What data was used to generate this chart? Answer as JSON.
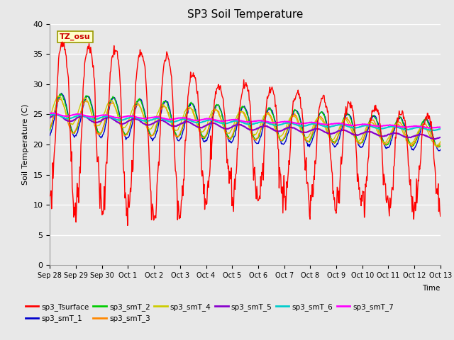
{
  "title": "SP3 Soil Temperature",
  "ylabel": "Soil Temperature (C)",
  "xlabel": "Time",
  "ylim": [
    0,
    40
  ],
  "xlim": [
    0,
    15
  ],
  "figsize": [
    6.4,
    4.8
  ],
  "dpi": 100,
  "background_color": "#e8e8e8",
  "plot_bg_color": "#e8e8e8",
  "grid_color": "#ffffff",
  "tz_label": "TZ_osu",
  "series_colors": {
    "sp3_Tsurface": "#ff0000",
    "sp3_smT_1": "#0000cc",
    "sp3_smT_2": "#00cc00",
    "sp3_smT_3": "#ff8800",
    "sp3_smT_4": "#cccc00",
    "sp3_smT_5": "#8800cc",
    "sp3_smT_6": "#00cccc",
    "sp3_smT_7": "#ff00ff"
  },
  "x_tick_labels": [
    "Sep 28",
    "Sep 29",
    "Sep 30",
    "Oct 1",
    "Oct 2",
    "Oct 3",
    "Oct 4",
    "Oct 5",
    "Oct 6",
    "Oct 7",
    "Oct 8",
    "Oct 9",
    "Oct 10",
    "Oct 11",
    "Oct 12",
    "Oct 13"
  ],
  "y_ticks": [
    0,
    5,
    10,
    15,
    20,
    25,
    30,
    35,
    40
  ],
  "n_points": 720,
  "duration_days": 15
}
